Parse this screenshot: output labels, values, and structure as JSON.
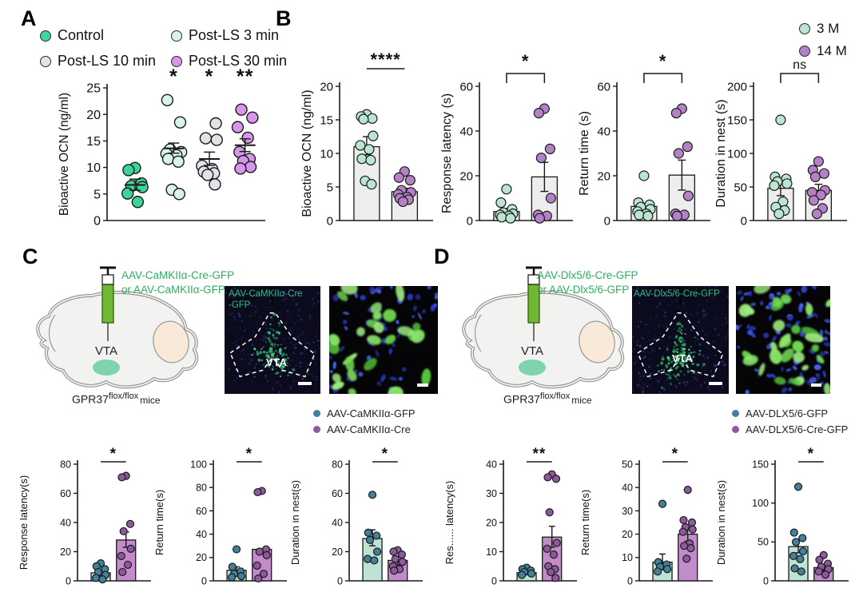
{
  "panelA": {
    "label": "A",
    "legend": [
      {
        "label": "Control",
        "color": "#3fd49c"
      },
      {
        "label": "Post-LS 3 min",
        "color": "#daf3e8"
      },
      {
        "label": "Post-LS 10 min",
        "color": "#e3e2e9"
      },
      {
        "label": "Post-LS 30 min",
        "color": "#d796ec"
      }
    ]
  },
  "panelB": {
    "label": "B",
    "legend": [
      {
        "label": "3 M",
        "color": "#b9e5d1"
      },
      {
        "label": "14 M",
        "color": "#b480c6"
      }
    ]
  },
  "panelC": {
    "label": "C",
    "injection_line1": "AAV-CaMKIIα-Cre-GFP",
    "injection_line2": "or AAV-CaMKIIα-GFP",
    "brain_region": "VTA",
    "mouse_base": "GPR37",
    "mouse_sup": "flox/flox",
    "mouse_suffix": "mice",
    "micro1_label_line1": "AAV-CaMKIIα-Cre",
    "micro1_label_line2": "-GFP",
    "micro1_region": "VTA",
    "legend": [
      {
        "label": "AAV-CaMKIIα-GFP",
        "color": "#44809b"
      },
      {
        "label": "AAV-CaMKIIα-Cre",
        "color": "#8c5a9c"
      }
    ]
  },
  "panelD": {
    "label": "D",
    "injection_line1": "AAV-Dlx5/6-Cre-GFP",
    "injection_line2": "or AAV-Dlx5/6-GFP",
    "brain_region": "VTA",
    "mouse_base": "GPR37",
    "mouse_sup": "flox/flox",
    "mouse_suffix": "mice",
    "micro1_label_line1": "AAV-Dlx5/6-Cre-GFP",
    "micro1_label_line2": "",
    "micro1_region": "VTA",
    "legend": [
      {
        "label": "AAV-DLX5/6-GFP",
        "color": "#44809b"
      },
      {
        "label": "AAV-DLX5/6-Cre-GFP",
        "color": "#8c5a9c"
      }
    ]
  },
  "chart_data": [
    {
      "id": "A",
      "type": "scatter",
      "title": "",
      "xlabel": "",
      "ylabel": "Bioactive OCN (ng/ml)",
      "ylim": [
        0,
        25
      ],
      "yticks": [
        0,
        5,
        10,
        15,
        20,
        25
      ],
      "groups": [
        {
          "name": "Control",
          "color": "#3fd49c",
          "sig": "",
          "points": [
            9.9,
            9.5,
            7.0,
            6.5,
            6.3,
            5.1,
            3.5
          ],
          "mean": 6.7,
          "err": [
            5.7,
            7.8
          ]
        },
        {
          "name": "Post-LS 3 min",
          "color": "#daf3e8",
          "sig": "*",
          "points": [
            22.7,
            18.5,
            13.4,
            12.9,
            12.6,
            12.3,
            11.6,
            11.1,
            5.8,
            5.0
          ],
          "mean": 13.6,
          "err": [
            12.7,
            14.6
          ]
        },
        {
          "name": "Post-LS 10 min",
          "color": "#e3e2e9",
          "sig": "*",
          "points": [
            18.3,
            15.5,
            15.2,
            10.3,
            9.7,
            9.2,
            8.9,
            8.6,
            6.8
          ],
          "mean": 11.6,
          "err": [
            10.4,
            12.9
          ]
        },
        {
          "name": "Post-LS 30 min",
          "color": "#d796ec",
          "sig": "**",
          "points": [
            20.9,
            19.4,
            17.6,
            15.6,
            12.9,
            11.6,
            11.2,
            10.1,
            9.8
          ],
          "mean": 14.2,
          "err": [
            13.0,
            15.4
          ]
        }
      ]
    },
    {
      "id": "B1",
      "type": "bar",
      "variant": "B",
      "ylabel": "Bioactive OCN (ng/ml)",
      "ylim": [
        0,
        20
      ],
      "yticks": [
        0,
        5,
        10,
        15,
        20
      ],
      "sig": {
        "label": "****",
        "style": "line"
      },
      "groups": [
        {
          "name": "3 M",
          "bar": 11.0,
          "err": [
            9.8,
            12.5
          ],
          "barColor": "#ededed",
          "dotColor": "#b9e5d1",
          "points": [
            15.8,
            15.5,
            15.2,
            15.1,
            12.6,
            11.2,
            10.6,
            9.2,
            9.0,
            5.9,
            5.4
          ]
        },
        {
          "name": "14 M",
          "bar": 4.3,
          "err": [
            3.9,
            4.8
          ],
          "barColor": "#ededed",
          "dotColor": "#b480c6",
          "points": [
            7.3,
            6.4,
            6.0,
            4.5,
            4.2,
            3.9,
            3.5,
            3.3,
            3.1,
            2.8
          ]
        }
      ]
    },
    {
      "id": "B2",
      "type": "bar",
      "variant": "B",
      "ylabel": "Response latency (s)",
      "ylim": [
        0,
        60
      ],
      "yticks": [
        0,
        20,
        40,
        60
      ],
      "sig": {
        "label": "*",
        "style": "bracket"
      },
      "groups": [
        {
          "name": "3 M",
          "bar": 4.0,
          "err": [
            2.6,
            5.4
          ],
          "barColor": "#ededed",
          "dotColor": "#b9e5d1",
          "points": [
            14,
            8,
            5,
            3.5,
            3,
            2.5,
            2,
            1.5,
            1
          ]
        },
        {
          "name": "14 M",
          "bar": 19.5,
          "err": [
            13,
            26
          ],
          "barColor": "#ededed",
          "dotColor": "#b480c6",
          "points": [
            50,
            48,
            32,
            28,
            10,
            2.5,
            2,
            1
          ]
        }
      ]
    },
    {
      "id": "B3",
      "type": "bar",
      "variant": "B",
      "ylabel": "Return time (s)",
      "ylim": [
        0,
        60
      ],
      "yticks": [
        0,
        20,
        40,
        60
      ],
      "sig": {
        "label": "*",
        "style": "bracket"
      },
      "groups": [
        {
          "name": "3 M",
          "bar": 6.3,
          "err": [
            4.9,
            7.7
          ],
          "barColor": "#ededed",
          "dotColor": "#b9e5d1",
          "points": [
            20,
            8,
            7,
            6,
            5,
            4,
            3,
            2.5,
            2
          ]
        },
        {
          "name": "14 M",
          "bar": 20.3,
          "err": [
            13.6,
            27
          ],
          "barColor": "#ededed",
          "dotColor": "#b480c6",
          "points": [
            50,
            48,
            33,
            30,
            11,
            3,
            2.5,
            2
          ]
        }
      ]
    },
    {
      "id": "B4",
      "type": "bar",
      "variant": "B",
      "ylabel": "Duration in nest (s)",
      "ylim": [
        0,
        200
      ],
      "yticks": [
        0,
        50,
        100,
        150,
        200
      ],
      "sig": {
        "label": "ns",
        "style": "bracket"
      },
      "groups": [
        {
          "name": "3 M",
          "bar": 48,
          "err": [
            37,
            59
          ],
          "barColor": "#ededed",
          "dotColor": "#b9e5d1",
          "points": [
            150,
            65,
            62,
            58,
            55,
            52,
            28,
            20,
            15,
            10
          ]
        },
        {
          "name": "14 M",
          "bar": 45,
          "err": [
            37,
            54
          ],
          "barColor": "#ededed",
          "dotColor": "#b480c6",
          "points": [
            88,
            75,
            70,
            65,
            45,
            42,
            38,
            30,
            18,
            10
          ]
        }
      ]
    },
    {
      "id": "C1",
      "type": "bar",
      "variant": "S",
      "ylabel": "Response latency(s)",
      "ylim": [
        0,
        80
      ],
      "yticks": [
        0,
        20,
        40,
        60,
        80
      ],
      "sig": {
        "label": "*",
        "style": "line"
      },
      "groups": [
        {
          "name": "AAV-CaMKIIα-GFP",
          "bar": 5.5,
          "err": [
            3.3,
            8.0
          ],
          "barColor": "#bce3d4",
          "dotColor": "#44809b",
          "points": [
            12,
            10,
            8,
            6,
            4,
            2,
            1
          ]
        },
        {
          "name": "AAV-CaMKIIα-Cre",
          "bar": 28,
          "err": [
            23,
            33.5
          ],
          "barColor": "#c18cc9",
          "dotColor": "#8c5a9c",
          "points": [
            72,
            71,
            39,
            34,
            22,
            17,
            11,
            6
          ]
        }
      ]
    },
    {
      "id": "C2",
      "type": "bar",
      "variant": "S",
      "ylabel": "Return time(s)",
      "ylim": [
        0,
        100
      ],
      "yticks": [
        0,
        20,
        40,
        60,
        80,
        100
      ],
      "sig": {
        "label": "*",
        "style": "line"
      },
      "groups": [
        {
          "name": "AAV-CaMKIIα-GFP",
          "bar": 9,
          "err": [
            6,
            12
          ],
          "barColor": "#bce3d4",
          "dotColor": "#44809b",
          "points": [
            27,
            12,
            8,
            6,
            4,
            3
          ]
        },
        {
          "name": "AAV-CaMKIIα-Cre",
          "bar": 27,
          "err": null,
          "barColor": "#c18cc9",
          "dotColor": "#8c5a9c",
          "points": [
            77,
            76,
            27,
            25,
            22,
            13,
            6,
            2
          ]
        }
      ]
    },
    {
      "id": "C3",
      "type": "bar",
      "variant": "S",
      "ylabel": "Duration in nest(s)",
      "ylim": [
        0,
        80
      ],
      "yticks": [
        0,
        20,
        40,
        60,
        80
      ],
      "sig": {
        "label": "*",
        "style": "line"
      },
      "groups": [
        {
          "name": "AAV-CaMKIIα-GFP",
          "bar": 29,
          "err": [
            24,
            35
          ],
          "barColor": "#bce3d4",
          "dotColor": "#44809b",
          "points": [
            59,
            33,
            31,
            28,
            20,
            15,
            14
          ]
        },
        {
          "name": "AAV-CaMKIIα-Cre",
          "bar": 14,
          "err": [
            11,
            17
          ],
          "barColor": "#c18cc9",
          "dotColor": "#8c5a9c",
          "points": [
            21,
            20,
            18,
            15,
            13,
            10,
            8,
            7
          ]
        }
      ]
    },
    {
      "id": "D1",
      "type": "bar",
      "variant": "S",
      "ylabel": "Res...... latency(s)",
      "ylim": [
        0,
        40
      ],
      "yticks": [
        0,
        10,
        20,
        30,
        40
      ],
      "sig": {
        "label": "**",
        "style": "line"
      },
      "groups": [
        {
          "name": "AAV-DLX5/6-GFP",
          "bar": 2.8,
          "err": [
            2.1,
            3.6
          ],
          "barColor": "#bce3d4",
          "dotColor": "#44809b",
          "points": [
            4.5,
            4,
            3.5,
            3,
            2.5,
            2
          ]
        },
        {
          "name": "AAV-DLX5/6-Cre-GFP",
          "bar": 15,
          "err": [
            11.5,
            18.7
          ],
          "barColor": "#c18cc9",
          "dotColor": "#8c5a9c",
          "points": [
            36.5,
            35.5,
            35,
            23.5,
            13,
            11,
            9,
            5,
            4,
            3,
            1
          ]
        }
      ]
    },
    {
      "id": "D2",
      "type": "bar",
      "variant": "S",
      "ylabel": "Return time(s)",
      "ylim": [
        0,
        50
      ],
      "yticks": [
        0,
        10,
        20,
        30,
        40,
        50
      ],
      "sig": {
        "label": "*",
        "style": "line"
      },
      "groups": [
        {
          "name": "AAV-DLX5/6-GFP",
          "bar": 8,
          "err": [
            4.8,
            11.5
          ],
          "barColor": "#bce3d4",
          "dotColor": "#44809b",
          "points": [
            33,
            8,
            7,
            6,
            5,
            4
          ]
        },
        {
          "name": "AAV-DLX5/6-Cre-GFP",
          "bar": 20,
          "err": [
            17,
            23
          ],
          "barColor": "#c18cc9",
          "dotColor": "#8c5a9c",
          "points": [
            39,
            26,
            25,
            23,
            22,
            21,
            16,
            15,
            14,
            9.5
          ]
        }
      ]
    },
    {
      "id": "D3",
      "type": "bar",
      "variant": "S",
      "ylabel": "Duration in nest(s)",
      "ylim": [
        0,
        150
      ],
      "yticks": [
        0,
        50,
        100,
        150
      ],
      "sig": {
        "label": "*",
        "style": "line"
      },
      "groups": [
        {
          "name": "AAV-DLX5/6-GFP",
          "bar": 44,
          "err": [
            36,
            53
          ],
          "barColor": "#bce3d4",
          "dotColor": "#44809b",
          "points": [
            121,
            62,
            55,
            50,
            38,
            32,
            28,
            16,
            12
          ]
        },
        {
          "name": "AAV-DLX5/6-Cre-GFP",
          "bar": 17,
          "err": [
            13,
            21
          ],
          "barColor": "#c18cc9",
          "dotColor": "#8c5a9c",
          "points": [
            33,
            27,
            22,
            18,
            15,
            12,
            8
          ]
        }
      ]
    }
  ]
}
